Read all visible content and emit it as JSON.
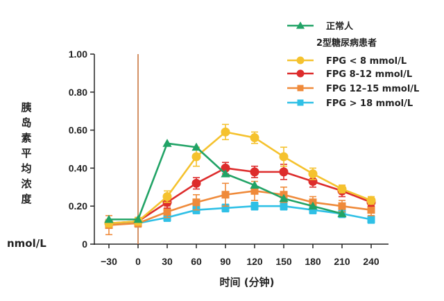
{
  "chart_data": {
    "type": "line",
    "xlabel": "时间 (分钟)",
    "ylabel": [
      "胰",
      "岛",
      "素",
      "平",
      "均",
      "浓",
      "度"
    ],
    "yunit": "nmol/L",
    "x": [
      -30,
      0,
      30,
      60,
      90,
      120,
      150,
      180,
      210,
      240
    ],
    "x_tick_labels": [
      "−30",
      "0",
      "30",
      "60",
      "90",
      "120",
      "150",
      "180",
      "210",
      "240"
    ],
    "xlim": [
      -45,
      255
    ],
    "ylim": [
      0,
      1.0
    ],
    "y_ticks": [
      0,
      0.2,
      0.4,
      0.6,
      0.8,
      1.0
    ],
    "y_tick_labels": [
      "0",
      "0.20",
      "0.40",
      "0.60",
      "0.80",
      "1.00"
    ],
    "vline_x": 0,
    "vline_color": "#c8753e",
    "legend_group_label": "2型糖尿病患者",
    "series": [
      {
        "name": "正常人",
        "color": "#21a366",
        "marker": "triangle",
        "x": [
          -30,
          0,
          30,
          60,
          90,
          120,
          150,
          180,
          210
        ],
        "values": [
          0.13,
          0.13,
          0.53,
          0.51,
          0.37,
          0.31,
          0.24,
          0.2,
          0.16
        ]
      },
      {
        "name": "FPG < 8 mmol/L",
        "color": "#f5c22e",
        "marker": "circle",
        "x": [
          -30,
          0,
          30,
          60,
          90,
          120,
          150,
          180,
          210,
          240
        ],
        "values": [
          0.11,
          0.12,
          0.25,
          0.46,
          0.59,
          0.56,
          0.46,
          0.37,
          0.29,
          0.23
        ],
        "errors": [
          0.02,
          0.02,
          0.03,
          0.05,
          0.04,
          0.03,
          0.05,
          0.03,
          0.02,
          0.02
        ]
      },
      {
        "name": "FPG 8-12 mmol/L",
        "color": "#dd2c2c",
        "marker": "circle",
        "x": [
          -30,
          0,
          30,
          60,
          90,
          120,
          150,
          180,
          210,
          240
        ],
        "values": [
          0.11,
          0.12,
          0.22,
          0.32,
          0.4,
          0.38,
          0.38,
          0.33,
          0.28,
          0.22
        ],
        "errors": [
          0.02,
          0.02,
          0.03,
          0.03,
          0.03,
          0.03,
          0.04,
          0.03,
          0.03,
          0.02
        ]
      },
      {
        "name": "FPG 12–15 mmol/L",
        "color": "#ef8a3a",
        "marker": "square",
        "x": [
          -30,
          0,
          30,
          60,
          90,
          120,
          150,
          180,
          210,
          240
        ],
        "values": [
          0.1,
          0.11,
          0.17,
          0.22,
          0.26,
          0.28,
          0.26,
          0.22,
          0.2,
          0.18
        ],
        "errors": [
          0.05,
          0.02,
          0.03,
          0.04,
          0.06,
          0.05,
          0.04,
          0.03,
          0.03,
          0.03
        ]
      },
      {
        "name": "FPG > 18 mmol/L",
        "color": "#2fc0e6",
        "marker": "square",
        "x": [
          -30,
          0,
          30,
          60,
          90,
          120,
          150,
          180,
          210,
          240
        ],
        "values": [
          0.11,
          0.11,
          0.14,
          0.18,
          0.19,
          0.2,
          0.2,
          0.18,
          0.16,
          0.13
        ],
        "errors": [
          0.02,
          0.02,
          0.02,
          0.02,
          0.02,
          0.02,
          0.02,
          0.02,
          0.02,
          0.02
        ]
      }
    ]
  }
}
